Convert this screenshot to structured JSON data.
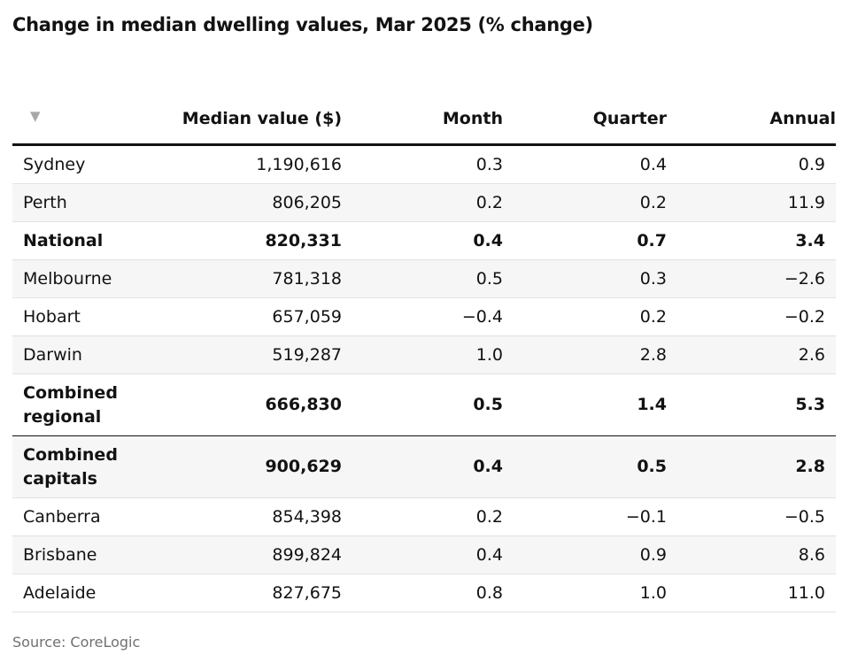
{
  "chart_data": {
    "type": "table",
    "title": "Change in median dwelling values, Mar 2025 (% change)",
    "sort_icon": "sort-down-triangle-icon",
    "sort_glyph": "▼",
    "columns": [
      "Median value ($)",
      "Month",
      "Quarter",
      "Annual"
    ],
    "rows": [
      {
        "region": "Sydney",
        "median": "1,190,616",
        "month": "0.3",
        "quarter": "0.4",
        "annual": "0.9",
        "bold": false
      },
      {
        "region": "Perth",
        "median": "806,205",
        "month": "0.2",
        "quarter": "0.2",
        "annual": "11.9",
        "bold": false
      },
      {
        "region": "National",
        "median": "820,331",
        "month": "0.4",
        "quarter": "0.7",
        "annual": "3.4",
        "bold": true
      },
      {
        "region": "Melbourne",
        "median": "781,318",
        "month": "0.5",
        "quarter": "0.3",
        "annual": "−2.6",
        "bold": false
      },
      {
        "region": "Hobart",
        "median": "657,059",
        "month": "−0.4",
        "quarter": "0.2",
        "annual": "−0.2",
        "bold": false
      },
      {
        "region": "Darwin",
        "median": "519,287",
        "month": "1.0",
        "quarter": "2.8",
        "annual": "2.6",
        "bold": false
      },
      {
        "region": "Combined regional",
        "median": "666,830",
        "month": "0.5",
        "quarter": "1.4",
        "annual": "5.3",
        "bold": true
      },
      {
        "region": "Combined capitals",
        "median": "900,629",
        "month": "0.4",
        "quarter": "0.5",
        "annual": "2.8",
        "bold": true
      },
      {
        "region": "Canberra",
        "median": "854,398",
        "month": "0.2",
        "quarter": "−0.1",
        "annual": "−0.5",
        "bold": false
      },
      {
        "region": "Brisbane",
        "median": "899,824",
        "month": "0.4",
        "quarter": "0.9",
        "annual": "8.6",
        "bold": false
      },
      {
        "region": "Adelaide",
        "median": "827,675",
        "month": "0.8",
        "quarter": "1.0",
        "annual": "11.0",
        "bold": false
      }
    ],
    "source": "Source: CoreLogic"
  }
}
